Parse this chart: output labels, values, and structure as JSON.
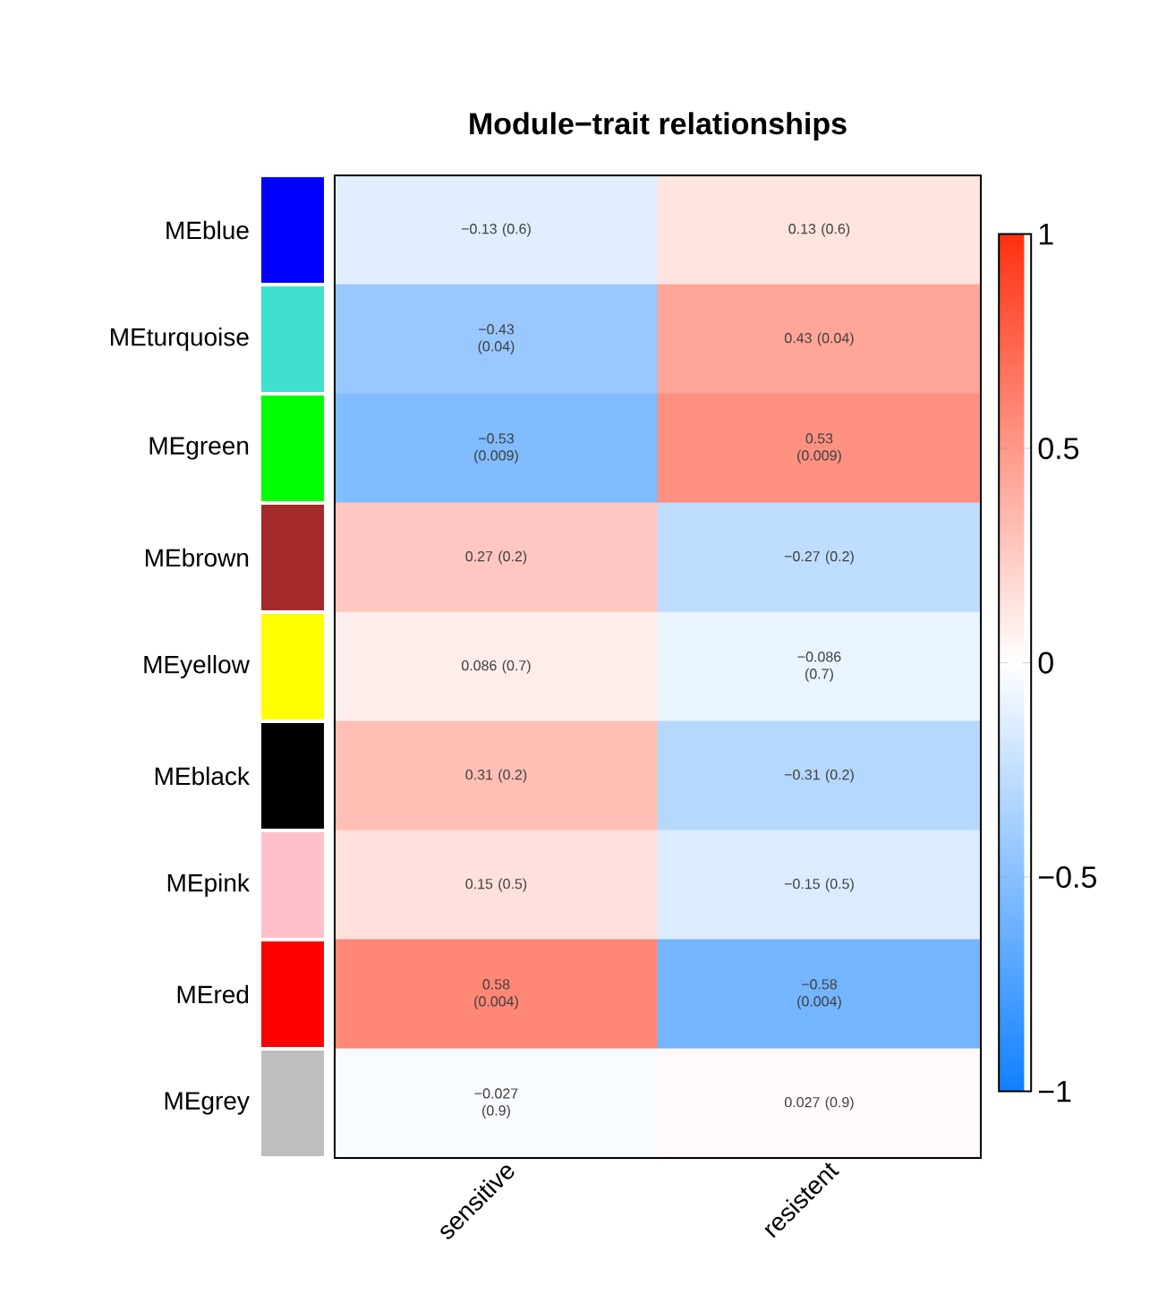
{
  "chart_data": {
    "type": "heatmap",
    "title": "Module−trait relationships",
    "categories": [
      "sensitive",
      "resistent"
    ],
    "y_categories": [
      "MEblue",
      "MEturquoise",
      "MEgreen",
      "MEbrown",
      "MEyellow",
      "MEblack",
      "MEpink",
      "MEred",
      "MEgrey"
    ],
    "cells": [
      [
        -0.13,
        0.13
      ],
      [
        -0.43,
        0.43
      ],
      [
        -0.53,
        0.53
      ],
      [
        0.27,
        -0.27
      ],
      [
        0.086,
        -0.086
      ],
      [
        0.31,
        -0.31
      ],
      [
        0.15,
        -0.15
      ],
      [
        0.58,
        -0.58
      ],
      [
        -0.027,
        0.027
      ]
    ],
    "cell_labels": [
      [
        "−0.13 (0.6)",
        "0.13 (0.6)"
      ],
      [
        "−0.43 (0.04)",
        "0.43 (0.04)"
      ],
      [
        "−0.53 (0.009)",
        "0.53 (0.009)"
      ],
      [
        "0.27 (0.2)",
        "−0.27 (0.2)"
      ],
      [
        "0.086 (0.7)",
        "−0.086 (0.7)"
      ],
      [
        "0.31 (0.2)",
        "−0.31 (0.2)"
      ],
      [
        "0.15 (0.5)",
        "−0.15 (0.5)"
      ],
      [
        "0.58 (0.004)",
        "−0.58 (0.004)"
      ],
      [
        "−0.027 (0.9)",
        "0.027 (0.9)"
      ]
    ],
    "clim": [
      -1,
      1
    ],
    "cticks": [
      {
        "value": -1,
        "label": "−1"
      },
      {
        "value": -0.5,
        "label": "−0.5"
      },
      0,
      0.5,
      1
    ]
  }
}
